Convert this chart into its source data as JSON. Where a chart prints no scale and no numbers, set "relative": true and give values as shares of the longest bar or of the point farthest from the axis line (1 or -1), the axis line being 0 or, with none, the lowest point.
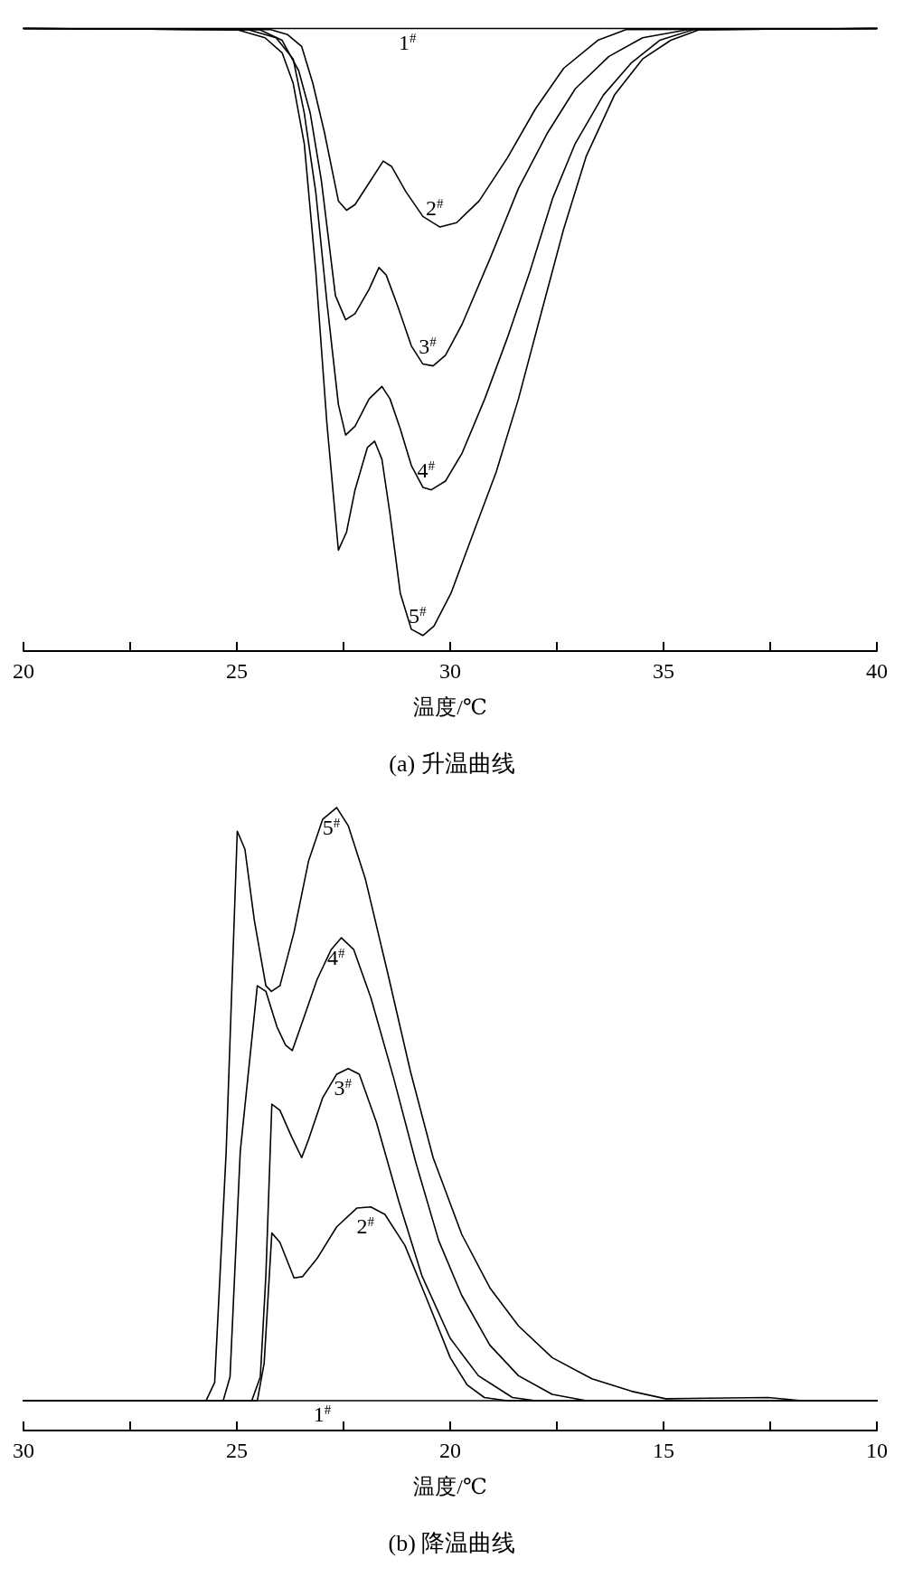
{
  "chart_data": [
    {
      "type": "line",
      "title": "(a) 升温曲线",
      "xlabel": "温度/℃",
      "relative": true,
      "tick_labels": "x",
      "xlim": [
        20,
        40
      ],
      "xticks": [
        20,
        {
          "value": 22.5,
          "label": null
        },
        25,
        {
          "value": 27.5,
          "label": null
        },
        30,
        {
          "value": 32.5,
          "label": null
        },
        35,
        {
          "value": 37.5,
          "label": null
        },
        40
      ],
      "series": [
        {
          "name": "1$^{#}$",
          "color": "#000000",
          "x": [
            20,
            25,
            29,
            35,
            40
          ],
          "values": [
            1,
            1,
            1,
            1,
            1
          ]
        },
        {
          "name": "2$^{#}$",
          "color": "#000000",
          "x": [
            20,
            25.79,
            26.19,
            26.52,
            26.78,
            27.05,
            27.38,
            27.57,
            27.77,
            28.1,
            28.43,
            28.63,
            28.96,
            29.36,
            29.76,
            30.15,
            30.68,
            31.34,
            32.0,
            32.66,
            33.46,
            34.12,
            40
          ],
          "values": [
            1,
            0.998,
            0.99,
            0.971,
            0.912,
            0.834,
            0.723,
            0.708,
            0.717,
            0.752,
            0.787,
            0.778,
            0.738,
            0.698,
            0.681,
            0.688,
            0.723,
            0.792,
            0.871,
            0.936,
            0.981,
            0.998,
            1
          ]
        },
        {
          "name": "3$^{#}$",
          "color": "#000000",
          "x": [
            20,
            25.53,
            26.06,
            26.45,
            26.72,
            26.98,
            27.31,
            27.55,
            27.77,
            28.1,
            28.33,
            28.5,
            28.77,
            29.09,
            29.36,
            29.6,
            29.89,
            30.28,
            30.95,
            31.6,
            32.27,
            32.93,
            33.72,
            34.51,
            35.57,
            40
          ],
          "values": [
            1,
            0.998,
            0.981,
            0.932,
            0.864,
            0.756,
            0.571,
            0.532,
            0.542,
            0.581,
            0.616,
            0.604,
            0.554,
            0.49,
            0.461,
            0.458,
            0.475,
            0.525,
            0.633,
            0.743,
            0.831,
            0.903,
            0.955,
            0.985,
            0.998,
            1
          ]
        },
        {
          "name": "4$^{#}$",
          "color": "#000000",
          "x": [
            20,
            25.26,
            25.92,
            26.32,
            26.58,
            26.85,
            27.11,
            27.38,
            27.55,
            27.77,
            28.1,
            28.4,
            28.59,
            28.83,
            29.09,
            29.36,
            29.56,
            29.89,
            30.28,
            30.81,
            31.34,
            31.87,
            32.4,
            32.93,
            33.59,
            34.25,
            34.91,
            35.7,
            40
          ],
          "values": [
            1,
            0.998,
            0.985,
            0.951,
            0.864,
            0.737,
            0.561,
            0.396,
            0.347,
            0.361,
            0.405,
            0.425,
            0.405,
            0.357,
            0.298,
            0.263,
            0.259,
            0.273,
            0.318,
            0.405,
            0.503,
            0.61,
            0.727,
            0.815,
            0.893,
            0.945,
            0.981,
            0.998,
            1
          ]
        },
        {
          "name": "5$^{#}$",
          "color": "#000000",
          "x": [
            20,
            25.0,
            25.66,
            26.06,
            26.32,
            26.58,
            26.85,
            27.11,
            27.38,
            27.57,
            27.77,
            28.06,
            28.23,
            28.4,
            28.59,
            28.83,
            29.09,
            29.36,
            29.62,
            30.02,
            30.55,
            31.08,
            31.6,
            32.13,
            32.66,
            33.19,
            33.85,
            34.51,
            35.17,
            35.84,
            40
          ],
          "values": [
            1,
            0.998,
            0.985,
            0.961,
            0.912,
            0.815,
            0.61,
            0.366,
            0.162,
            0.191,
            0.259,
            0.327,
            0.337,
            0.308,
            0.22,
            0.093,
            0.035,
            0.025,
            0.04,
            0.093,
            0.191,
            0.288,
            0.405,
            0.542,
            0.678,
            0.795,
            0.893,
            0.951,
            0.981,
            0.998,
            1
          ]
        }
      ]
    },
    {
      "type": "line",
      "title": "(b) 降温曲线",
      "xlabel": "温度/℃",
      "relative": true,
      "tick_labels": "x",
      "xlim": [
        30,
        10
      ],
      "xticks": [
        30,
        {
          "value": 27.5,
          "label": null
        },
        25,
        {
          "value": 22.5,
          "label": null
        },
        20,
        {
          "value": 17.5,
          "label": null
        },
        15,
        {
          "value": 12.5,
          "label": null
        },
        10
      ],
      "series": [
        {
          "name": "1$^{#}$",
          "color": "#000000",
          "x": [
            30,
            26,
            23,
            18,
            14,
            10
          ],
          "values": [
            0.048,
            0.048,
            0.048,
            0.048,
            0.048,
            0.048
          ]
        },
        {
          "name": "2$^{#}$",
          "color": "#000000",
          "x": [
            30,
            24.52,
            24.36,
            24.18,
            23.99,
            23.66,
            23.46,
            23.12,
            22.66,
            22.19,
            21.86,
            21.53,
            21.06,
            20.53,
            20.0,
            19.6,
            19.2,
            18.67,
            10
          ],
          "values": [
            0.048,
            0.048,
            0.108,
            0.317,
            0.302,
            0.245,
            0.247,
            0.276,
            0.327,
            0.357,
            0.359,
            0.347,
            0.297,
            0.208,
            0.117,
            0.073,
            0.053,
            0.048,
            0.048
          ]
        },
        {
          "name": "3$^{#}$",
          "color": "#000000",
          "x": [
            30,
            24.65,
            24.45,
            24.32,
            24.18,
            23.99,
            23.72,
            23.48,
            23.32,
            22.99,
            22.66,
            22.39,
            22.13,
            21.73,
            21.2,
            20.66,
            20.0,
            19.34,
            18.54,
            18.0,
            10
          ],
          "values": [
            0.048,
            0.048,
            0.086,
            0.248,
            0.524,
            0.514,
            0.472,
            0.438,
            0.467,
            0.534,
            0.572,
            0.581,
            0.572,
            0.495,
            0.367,
            0.248,
            0.148,
            0.088,
            0.053,
            0.048,
            0.048
          ]
        },
        {
          "name": "4$^{#}$",
          "color": "#000000",
          "x": [
            30,
            25.32,
            25.16,
            24.92,
            24.52,
            24.32,
            24.06,
            23.86,
            23.7,
            23.46,
            23.12,
            22.79,
            22.55,
            22.26,
            21.86,
            21.33,
            20.8,
            20.27,
            19.73,
            19.07,
            18.4,
            17.61,
            16.81,
            10
          ],
          "values": [
            0.048,
            0.048,
            0.086,
            0.448,
            0.714,
            0.705,
            0.648,
            0.619,
            0.61,
            0.657,
            0.724,
            0.772,
            0.791,
            0.772,
            0.695,
            0.567,
            0.429,
            0.305,
            0.217,
            0.137,
            0.088,
            0.058,
            0.048,
            0.048
          ]
        },
        {
          "name": "5$^{#}$",
          "color": "#000000",
          "x": [
            30,
            25.72,
            25.52,
            25.25,
            24.99,
            24.81,
            24.59,
            24.32,
            24.19,
            23.99,
            23.66,
            23.32,
            22.99,
            22.66,
            22.39,
            21.99,
            21.46,
            20.93,
            20.4,
            19.73,
            19.07,
            18.4,
            17.61,
            16.68,
            15.75,
            14.95,
            12.55,
            11.76,
            10
          ],
          "values": [
            0.048,
            0.048,
            0.077,
            0.448,
            0.962,
            0.933,
            0.819,
            0.714,
            0.705,
            0.714,
            0.8,
            0.914,
            0.981,
            1,
            0.971,
            0.886,
            0.733,
            0.576,
            0.438,
            0.315,
            0.229,
            0.168,
            0.117,
            0.083,
            0.063,
            0.051,
            0.053,
            0.048,
            0.048
          ]
        }
      ]
    }
  ]
}
